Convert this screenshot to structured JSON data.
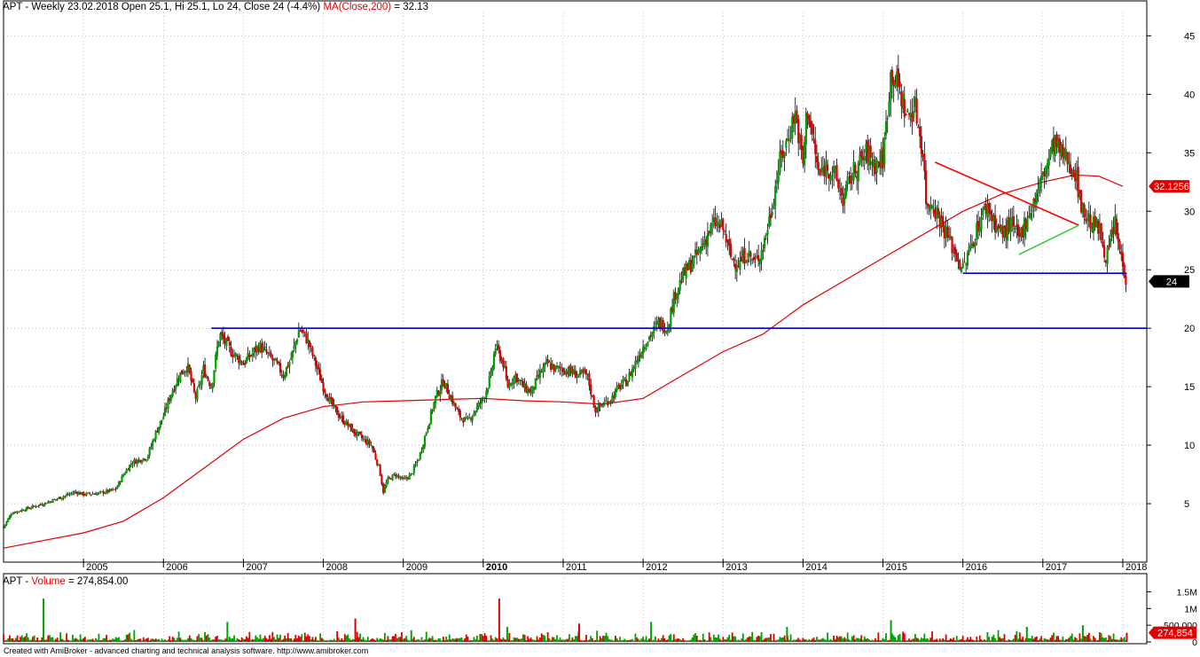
{
  "header": {
    "symbol": "APT",
    "sep": " - ",
    "text": "Weekly 23.02.2018 Open 25.1, Hi 25.1, Lo 24, Close 24 (-4.4%)",
    "ma_label": "MA(Close,200)",
    "ma_eq": " = 32.13"
  },
  "volume_header": {
    "symbol": "APT",
    "sep": " - ",
    "label": "Volume",
    "eq": " = 274,854.00"
  },
  "footer": "Created with AmiBroker - advanced charting and technical analysis software. http://www.amibroker.com",
  "colors": {
    "up": "#00a000",
    "down": "#e00000",
    "wick": "#000000",
    "ma": "#e00000",
    "support": "#0000c0",
    "triangle_top": "#ff0000",
    "triangle_bottom": "#33cc33",
    "badge_ma": "#e00000",
    "badge_price": "#000000"
  },
  "chart_data": [
    {
      "type": "candlestick",
      "title": "APT - Weekly",
      "x_ticks": [
        "2005",
        "2006",
        "2007",
        "2008",
        "2009",
        "2010",
        "2011",
        "2012",
        "2013",
        "2014",
        "2015",
        "2016",
        "2017",
        "2018"
      ],
      "bold_tick": "2010",
      "y_ticks": [
        5,
        10,
        15,
        20,
        25,
        30,
        35,
        40,
        45
      ],
      "ylim": [
        0,
        47
      ],
      "scale": "linear",
      "grid": true,
      "grid_style": "dotted",
      "last_bar": {
        "date": "23.02.2018",
        "open": 25.1,
        "high": 25.1,
        "low": 24,
        "close": 24,
        "change_pct": -4.4
      },
      "price_badge": "24",
      "ma_badge": "32.1256",
      "price_series": [
        {
          "x": 2004.0,
          "c": 3.0
        },
        {
          "x": 2004.1,
          "c": 4.2
        },
        {
          "x": 2004.3,
          "c": 4.6
        },
        {
          "x": 2004.5,
          "c": 5.0
        },
        {
          "x": 2004.7,
          "c": 5.5
        },
        {
          "x": 2004.9,
          "c": 6.0
        },
        {
          "x": 2005.0,
          "c": 5.8
        },
        {
          "x": 2005.2,
          "c": 5.9
        },
        {
          "x": 2005.4,
          "c": 6.2
        },
        {
          "x": 2005.5,
          "c": 7.5
        },
        {
          "x": 2005.6,
          "c": 8.5
        },
        {
          "x": 2005.8,
          "c": 9.0
        },
        {
          "x": 2005.9,
          "c": 11.0
        },
        {
          "x": 2006.0,
          "c": 12.5
        },
        {
          "x": 2006.1,
          "c": 14.5
        },
        {
          "x": 2006.2,
          "c": 16.0
        },
        {
          "x": 2006.3,
          "c": 16.8
        },
        {
          "x": 2006.4,
          "c": 14.0
        },
        {
          "x": 2006.45,
          "c": 15.0
        },
        {
          "x": 2006.5,
          "c": 16.5
        },
        {
          "x": 2006.6,
          "c": 15.0
        },
        {
          "x": 2006.7,
          "c": 19.5
        },
        {
          "x": 2006.85,
          "c": 18.0
        },
        {
          "x": 2007.0,
          "c": 17.0
        },
        {
          "x": 2007.2,
          "c": 18.5
        },
        {
          "x": 2007.4,
          "c": 17.0
        },
        {
          "x": 2007.5,
          "c": 16.0
        },
        {
          "x": 2007.6,
          "c": 17.5
        },
        {
          "x": 2007.7,
          "c": 20.0
        },
        {
          "x": 2007.8,
          "c": 19.0
        },
        {
          "x": 2007.9,
          "c": 17.0
        },
        {
          "x": 2008.0,
          "c": 15.0
        },
        {
          "x": 2008.1,
          "c": 13.5
        },
        {
          "x": 2008.2,
          "c": 12.5
        },
        {
          "x": 2008.4,
          "c": 11.0
        },
        {
          "x": 2008.5,
          "c": 10.5
        },
        {
          "x": 2008.6,
          "c": 10.0
        },
        {
          "x": 2008.7,
          "c": 8.0
        },
        {
          "x": 2008.75,
          "c": 6.0
        },
        {
          "x": 2008.8,
          "c": 7.0
        },
        {
          "x": 2008.9,
          "c": 7.5
        },
        {
          "x": 2009.0,
          "c": 7.0
        },
        {
          "x": 2009.1,
          "c": 7.5
        },
        {
          "x": 2009.2,
          "c": 9.0
        },
        {
          "x": 2009.3,
          "c": 11.5
        },
        {
          "x": 2009.4,
          "c": 14.0
        },
        {
          "x": 2009.5,
          "c": 15.5
        },
        {
          "x": 2009.6,
          "c": 14.0
        },
        {
          "x": 2009.7,
          "c": 12.5
        },
        {
          "x": 2009.8,
          "c": 12.0
        },
        {
          "x": 2009.9,
          "c": 13.0
        },
        {
          "x": 2010.0,
          "c": 14.0
        },
        {
          "x": 2010.1,
          "c": 16.0
        },
        {
          "x": 2010.15,
          "c": 18.5
        },
        {
          "x": 2010.25,
          "c": 17.0
        },
        {
          "x": 2010.3,
          "c": 15.0
        },
        {
          "x": 2010.4,
          "c": 16.0
        },
        {
          "x": 2010.5,
          "c": 15.0
        },
        {
          "x": 2010.6,
          "c": 14.5
        },
        {
          "x": 2010.7,
          "c": 16.0
        },
        {
          "x": 2010.8,
          "c": 17.0
        },
        {
          "x": 2010.9,
          "c": 16.5
        },
        {
          "x": 2011.0,
          "c": 16.5
        },
        {
          "x": 2011.2,
          "c": 16.0
        },
        {
          "x": 2011.3,
          "c": 16.0
        },
        {
          "x": 2011.4,
          "c": 13.0
        },
        {
          "x": 2011.5,
          "c": 13.5
        },
        {
          "x": 2011.6,
          "c": 14.0
        },
        {
          "x": 2011.7,
          "c": 15.0
        },
        {
          "x": 2011.8,
          "c": 15.5
        },
        {
          "x": 2011.9,
          "c": 17.0
        },
        {
          "x": 2012.0,
          "c": 18.5
        },
        {
          "x": 2012.1,
          "c": 19.5
        },
        {
          "x": 2012.2,
          "c": 20.5
        },
        {
          "x": 2012.3,
          "c": 20.0
        },
        {
          "x": 2012.4,
          "c": 23.0
        },
        {
          "x": 2012.5,
          "c": 24.5
        },
        {
          "x": 2012.6,
          "c": 25.5
        },
        {
          "x": 2012.7,
          "c": 26.5
        },
        {
          "x": 2012.8,
          "c": 28.0
        },
        {
          "x": 2012.9,
          "c": 29.0
        },
        {
          "x": 2013.0,
          "c": 28.5
        },
        {
          "x": 2013.1,
          "c": 26.0
        },
        {
          "x": 2013.2,
          "c": 25.5
        },
        {
          "x": 2013.3,
          "c": 26.5
        },
        {
          "x": 2013.4,
          "c": 25.5
        },
        {
          "x": 2013.5,
          "c": 27.0
        },
        {
          "x": 2013.6,
          "c": 30.0
        },
        {
          "x": 2013.7,
          "c": 34.0
        },
        {
          "x": 2013.8,
          "c": 36.0
        },
        {
          "x": 2013.9,
          "c": 38.5
        },
        {
          "x": 2014.0,
          "c": 34.0
        },
        {
          "x": 2014.05,
          "c": 39.0
        },
        {
          "x": 2014.1,
          "c": 37.0
        },
        {
          "x": 2014.2,
          "c": 33.0
        },
        {
          "x": 2014.3,
          "c": 34.0
        },
        {
          "x": 2014.4,
          "c": 33.0
        },
        {
          "x": 2014.5,
          "c": 31.0
        },
        {
          "x": 2014.6,
          "c": 33.0
        },
        {
          "x": 2014.7,
          "c": 34.0
        },
        {
          "x": 2014.8,
          "c": 35.0
        },
        {
          "x": 2014.9,
          "c": 34.0
        },
        {
          "x": 2015.0,
          "c": 34.5
        },
        {
          "x": 2015.1,
          "c": 42.0
        },
        {
          "x": 2015.2,
          "c": 40.5
        },
        {
          "x": 2015.3,
          "c": 38.0
        },
        {
          "x": 2015.4,
          "c": 39.0
        },
        {
          "x": 2015.5,
          "c": 35.0
        },
        {
          "x": 2015.55,
          "c": 30.0
        },
        {
          "x": 2015.6,
          "c": 31.0
        },
        {
          "x": 2015.7,
          "c": 29.5
        },
        {
          "x": 2015.8,
          "c": 28.0
        },
        {
          "x": 2015.9,
          "c": 26.5
        },
        {
          "x": 2016.0,
          "c": 25.0
        },
        {
          "x": 2016.1,
          "c": 27.0
        },
        {
          "x": 2016.2,
          "c": 29.0
        },
        {
          "x": 2016.3,
          "c": 30.5
        },
        {
          "x": 2016.4,
          "c": 29.0
        },
        {
          "x": 2016.5,
          "c": 28.0
        },
        {
          "x": 2016.6,
          "c": 29.0
        },
        {
          "x": 2016.7,
          "c": 27.5
        },
        {
          "x": 2016.8,
          "c": 29.5
        },
        {
          "x": 2016.9,
          "c": 31.0
        },
        {
          "x": 2017.0,
          "c": 33.0
        },
        {
          "x": 2017.1,
          "c": 35.0
        },
        {
          "x": 2017.15,
          "c": 36.0
        },
        {
          "x": 2017.2,
          "c": 35.0
        },
        {
          "x": 2017.3,
          "c": 34.5
        },
        {
          "x": 2017.4,
          "c": 33.5
        },
        {
          "x": 2017.5,
          "c": 30.0
        },
        {
          "x": 2017.6,
          "c": 29.0
        },
        {
          "x": 2017.7,
          "c": 28.5
        },
        {
          "x": 2017.8,
          "c": 26.0
        },
        {
          "x": 2017.9,
          "c": 29.0
        },
        {
          "x": 2017.95,
          "c": 27.0
        },
        {
          "x": 2018.0,
          "c": 25.5
        },
        {
          "x": 2018.05,
          "c": 24.0
        }
      ],
      "ma_series": [
        {
          "x": 2004.0,
          "y": 1.2
        },
        {
          "x": 2005.0,
          "y": 2.5
        },
        {
          "x": 2005.5,
          "y": 3.5
        },
        {
          "x": 2006.0,
          "y": 5.5
        },
        {
          "x": 2006.5,
          "y": 8.0
        },
        {
          "x": 2007.0,
          "y": 10.5
        },
        {
          "x": 2007.5,
          "y": 12.3
        },
        {
          "x": 2008.0,
          "y": 13.3
        },
        {
          "x": 2008.5,
          "y": 13.7
        },
        {
          "x": 2009.0,
          "y": 13.8
        },
        {
          "x": 2009.5,
          "y": 13.9
        },
        {
          "x": 2010.0,
          "y": 14.0
        },
        {
          "x": 2010.5,
          "y": 13.8
        },
        {
          "x": 2011.0,
          "y": 13.7
        },
        {
          "x": 2011.5,
          "y": 13.5
        },
        {
          "x": 2012.0,
          "y": 14.0
        },
        {
          "x": 2012.5,
          "y": 16.0
        },
        {
          "x": 2013.0,
          "y": 18.0
        },
        {
          "x": 2013.5,
          "y": 19.5
        },
        {
          "x": 2014.0,
          "y": 22.0
        },
        {
          "x": 2014.5,
          "y": 24.0
        },
        {
          "x": 2015.0,
          "y": 26.0
        },
        {
          "x": 2015.5,
          "y": 28.0
        },
        {
          "x": 2016.0,
          "y": 30.0
        },
        {
          "x": 2016.5,
          "y": 31.5
        },
        {
          "x": 2017.0,
          "y": 32.5
        },
        {
          "x": 2017.4,
          "y": 33.1
        },
        {
          "x": 2017.7,
          "y": 33.0
        },
        {
          "x": 2018.0,
          "y": 32.13
        }
      ],
      "lines": [
        {
          "name": "support-20",
          "color": "support",
          "x1": 2006.6,
          "y1": 20.0,
          "x2": 2018.3,
          "y2": 20.0
        },
        {
          "name": "support-24.7",
          "color": "support",
          "x1": 2016.0,
          "y1": 24.7,
          "x2": 2018.05,
          "y2": 24.7
        },
        {
          "name": "triangle-upper",
          "color": "triangle_top",
          "x1": 2015.65,
          "y1": 34.2,
          "x2": 2017.45,
          "y2": 28.8
        },
        {
          "name": "triangle-lower",
          "color": "triangle_bottom",
          "x1": 2016.7,
          "y1": 26.3,
          "x2": 2017.45,
          "y2": 28.8
        }
      ]
    },
    {
      "type": "bar",
      "title": "Volume",
      "y_ticks": [
        "1.5M",
        "1M",
        "500 000",
        "0"
      ],
      "last_volume": 274854,
      "volume_badge": "274,854",
      "spikes": [
        {
          "x": 2004.5,
          "v": 1300000,
          "up": true
        },
        {
          "x": 2006.8,
          "v": 600000,
          "up": true
        },
        {
          "x": 2008.4,
          "v": 700000,
          "up": false
        },
        {
          "x": 2009.1,
          "v": 350000,
          "up": true
        },
        {
          "x": 2010.2,
          "v": 1300000,
          "up": false
        },
        {
          "x": 2010.3,
          "v": 450000,
          "up": true
        },
        {
          "x": 2011.2,
          "v": 550000,
          "up": false
        },
        {
          "x": 2012.1,
          "v": 600000,
          "up": true
        },
        {
          "x": 2013.8,
          "v": 450000,
          "up": true
        },
        {
          "x": 2015.1,
          "v": 650000,
          "up": true
        },
        {
          "x": 2016.8,
          "v": 450000,
          "up": true
        },
        {
          "x": 2017.5,
          "v": 500000,
          "up": true
        },
        {
          "x": 2018.05,
          "v": 274854,
          "up": false
        }
      ]
    }
  ]
}
